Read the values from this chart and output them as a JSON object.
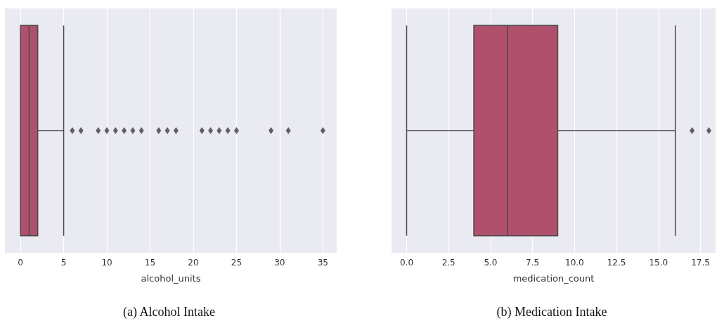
{
  "chart_data": [
    {
      "type": "box",
      "title": "(a) Alcohol Intake",
      "xlabel": "alcohol_units",
      "orientation": "horizontal",
      "categories": [
        null
      ],
      "color": "#b0506c",
      "boxes": [
        {
          "low": 0,
          "q1": 0,
          "median": 1,
          "q3": 2,
          "high": 5,
          "outliers": [
            6,
            7,
            9,
            10,
            11,
            12,
            13,
            14,
            16,
            17,
            18,
            21,
            22,
            23,
            24,
            25,
            29,
            31,
            35
          ]
        }
      ],
      "xlim": [
        -1.8,
        36.6
      ],
      "xticks": [
        0,
        5,
        10,
        15,
        20,
        25,
        30,
        35
      ],
      "grid": "x",
      "tick_labels": "x",
      "marker": "diamond"
    },
    {
      "type": "box",
      "title": "(b) Medication Intake",
      "xlabel": "medication_count",
      "orientation": "horizontal",
      "categories": [
        null
      ],
      "color": "#b0506c",
      "boxes": [
        {
          "low": 0,
          "q1": 4,
          "median": 6,
          "q3": 9,
          "high": 16,
          "outliers": [
            17,
            18
          ]
        }
      ],
      "xlim": [
        -0.9,
        18.4
      ],
      "xticks": [
        {
          "value": 0,
          "label": "0.0"
        },
        2.5,
        {
          "value": 5,
          "label": "5.0"
        },
        7.5,
        {
          "value": 10,
          "label": "10.0"
        },
        12.5,
        {
          "value": 15,
          "label": "15.0"
        },
        17.5
      ],
      "grid": "x",
      "tick_labels": "x",
      "marker": "diamond"
    }
  ]
}
